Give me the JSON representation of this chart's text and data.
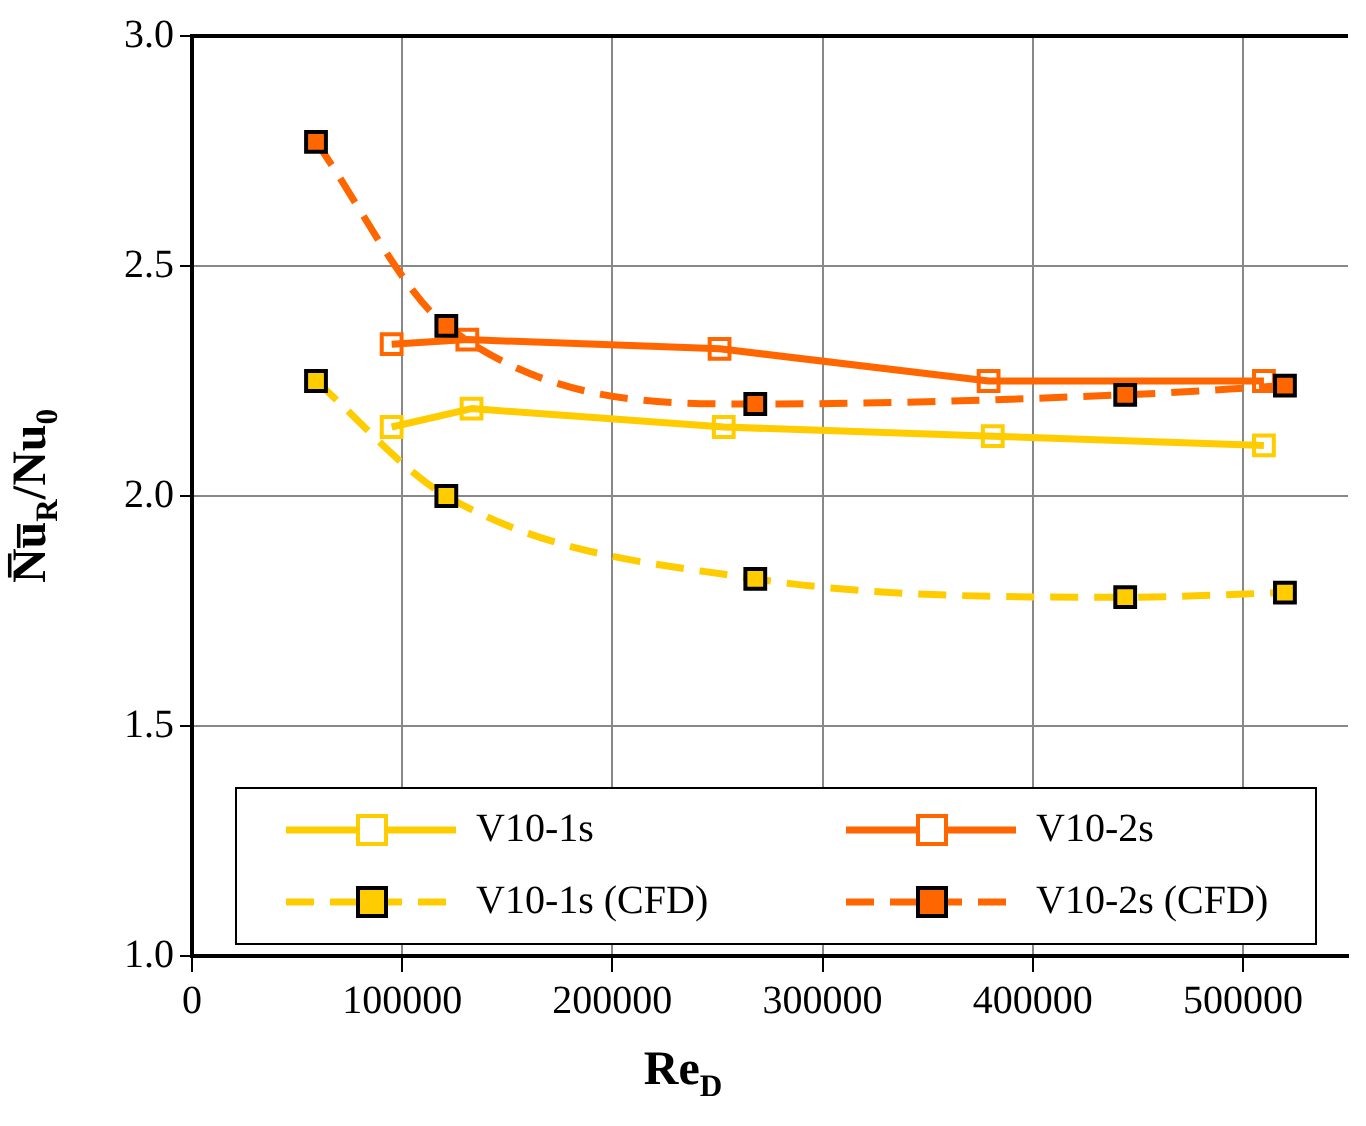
{
  "chart_data": {
    "type": "line",
    "xlabel": "Re$_{D}$",
    "ylabel": "N̅u̅$_{R}$/Nu$_{0}$",
    "xlim": [
      0,
      550000
    ],
    "xticks": [
      0,
      100000,
      200000,
      300000,
      400000,
      500000
    ],
    "ylim": [
      1,
      3
    ],
    "yticks": [
      {
        "value": 1,
        "label": "1.0"
      },
      {
        "value": 1.5,
        "label": "1.5"
      },
      {
        "value": 2,
        "label": "2.0"
      },
      {
        "value": 2.5,
        "label": "2.5"
      },
      {
        "value": 3,
        "label": "3.0"
      }
    ],
    "grid": true,
    "legend": "bottom",
    "marker": "square",
    "series": [
      {
        "name": "V10-1s",
        "color": "#ffcc00",
        "line_style": "solid",
        "x": [
          95000,
          133000,
          253000,
          381000,
          510000
        ],
        "values": [
          2.15,
          2.19,
          2.15,
          2.13,
          2.11
        ]
      },
      {
        "name": "V10-2s",
        "color": "#ff6600",
        "line_style": "solid",
        "x": [
          95000,
          131000,
          251000,
          379000,
          510000
        ],
        "values": [
          2.33,
          2.34,
          2.32,
          2.25,
          2.25
        ]
      },
      {
        "name": "V10-1s (CFD)",
        "color": "#ffcc00",
        "line_style": "dashed",
        "x": [
          59000,
          121000,
          268000,
          444000,
          520000
        ],
        "values": [
          2.25,
          2.0,
          1.82,
          1.78,
          1.79
        ]
      },
      {
        "name": "V10-2s (CFD)",
        "color": "#ff6600",
        "line_style": "dashed",
        "x": [
          59000,
          121000,
          268000,
          444000,
          520000
        ],
        "values": [
          2.77,
          2.37,
          2.2,
          2.22,
          2.24
        ]
      }
    ]
  }
}
